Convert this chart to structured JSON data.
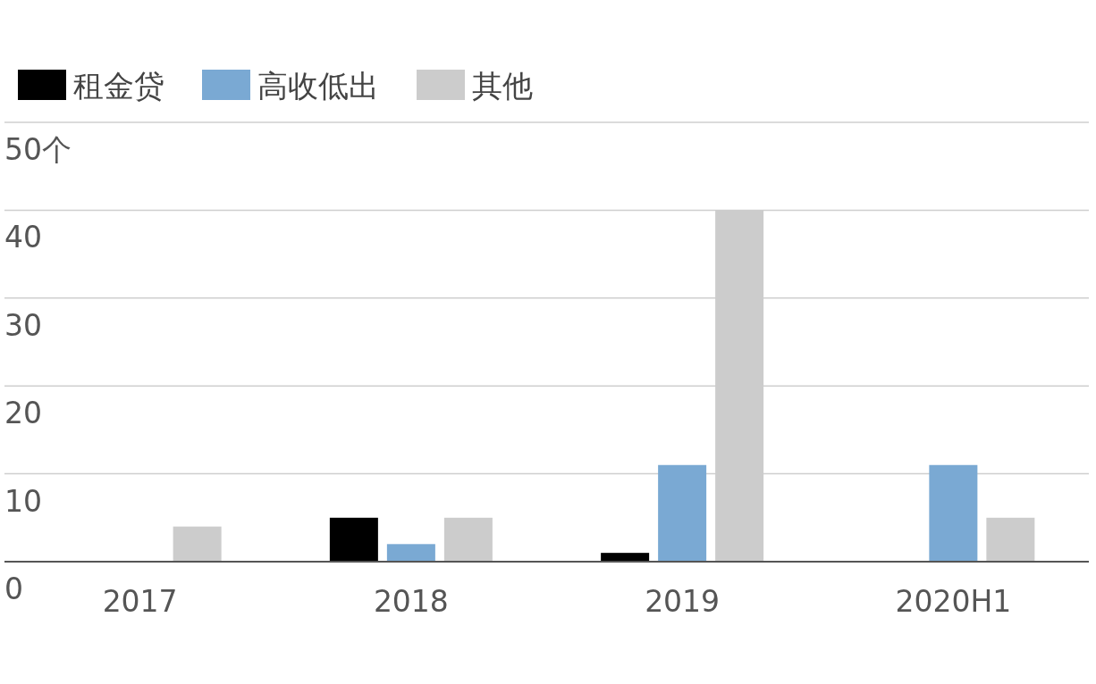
{
  "chart_data": {
    "type": "bar",
    "categories": [
      "2017",
      "2018",
      "2019",
      "2020H1"
    ],
    "series": [
      {
        "name": "租金贷",
        "color": "#000000",
        "values": [
          0,
          5,
          1,
          0
        ]
      },
      {
        "name": "高收低出",
        "color": "#7aa9d3",
        "values": [
          0,
          2,
          11,
          11
        ]
      },
      {
        "name": "其他",
        "color": "#cccccc",
        "values": [
          4,
          5,
          40,
          5
        ]
      }
    ],
    "ylim": [
      0,
      50
    ],
    "yticks": [
      0,
      10,
      20,
      30,
      40,
      {
        "value": 50,
        "label": "50个"
      }
    ],
    "grid": "y",
    "legend": "top left"
  }
}
